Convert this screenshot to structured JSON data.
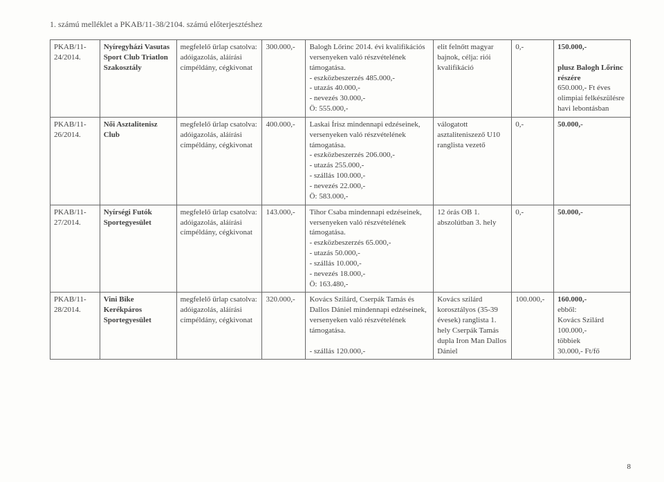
{
  "title": "1. számú melléklet a PKAB/11-38/2104. számú előterjesztéshez",
  "page_number": "8",
  "rows": [
    {
      "c1": "PKAB/11-24/2014.",
      "c2_bold": "Nyíregyházi Vasutas Sport Club Triatlon Szakosztály",
      "c3": "megfelelő űrlap csatolva: adóigazolás, aláírási címpéldány, cégkivonat",
      "c4": "300.000,-",
      "c5": "Balogh Lőrinc 2014. évi kvalifikációs versenyeken való részvételének támogatása.\n- eszközbeszerzés 485.000,-\n- utazás 40.000,-\n- nevezés 30.000,-\nÖ: 555.000,-",
      "c6": "elit felnőtt magyar bajnok, célja: riói kvalifikáció",
      "c7": "0,-",
      "c8_main": "150.000,-",
      "c8_extra": "plusz Balogh Lőrinc részére",
      "c8_tail": "650.000,- Ft éves olimpiai felkészülésre havi lebontásban"
    },
    {
      "c1": "PKAB/11-26/2014.",
      "c2_bold": "Női Asztalitenisz Club",
      "c3": "megfelelő űrlap csatolva: adóigazolás, aláírási címpéldány, cégkivonat",
      "c4": "400.000,-",
      "c5": "Laskai Írisz mindennapi edzéseinek, versenyeken való részvételének támogatása.\n- eszközbeszerzés 206.000,-\n- utazás 255.000,-\n- szállás 100.000,-\n- nevezés 22.000,-\nÖ: 583.000,-",
      "c6": "válogatott asztaliteniszező U10 ranglista vezető",
      "c7": "0,-",
      "c8_main": "50.000,-",
      "c8_extra": "",
      "c8_tail": ""
    },
    {
      "c1": "PKAB/11-27/2014.",
      "c2_bold": "Nyírségi Futók Sportegyesület",
      "c3": "megfelelő űrlap csatolva: adóigazolás, aláírási címpéldány, cégkivonat",
      "c4": "143.000,-",
      "c5": "Tihor Csaba mindennapi edzéseinek, versenyeken való részvételének támogatása.\n- eszközbeszerzés 65.000,-\n- utazás 50.000,-\n- szállás 10.000,-\n- nevezés 18.000,-\nÖ: 163.480,-",
      "c6": "12 órás OB 1. abszolútban 3. hely",
      "c7": "0,-",
      "c8_main": "50.000,-",
      "c8_extra": "",
      "c8_tail": ""
    },
    {
      "c1": "PKAB/11-28/2014.",
      "c2_bold": "Vini Bike Kerékpáros Sportegyesület",
      "c3": "megfelelő űrlap csatolva: adóigazolás, aláírási címpéldány, cégkivonat",
      "c4": "320.000,-",
      "c5": "Kovács Szilárd, Cserpák Tamás és Dallos Dániel mindennapi edzéseinek, versenyeken való részvételének támogatása.\n\n- szállás 120.000,-",
      "c6": "Kovács szilárd korosztályos (35-39 évesek) ranglista 1. hely Cserpák Tamás dupla Iron Man Dallos Dániel",
      "c7": "100.000,-",
      "c8_main": "160.000,-",
      "c8_extra": "",
      "c8_tail": "ebből:\nKovács Szilárd 100.000,-\ntöbbiek\n30.000,- Ft/fő"
    }
  ]
}
